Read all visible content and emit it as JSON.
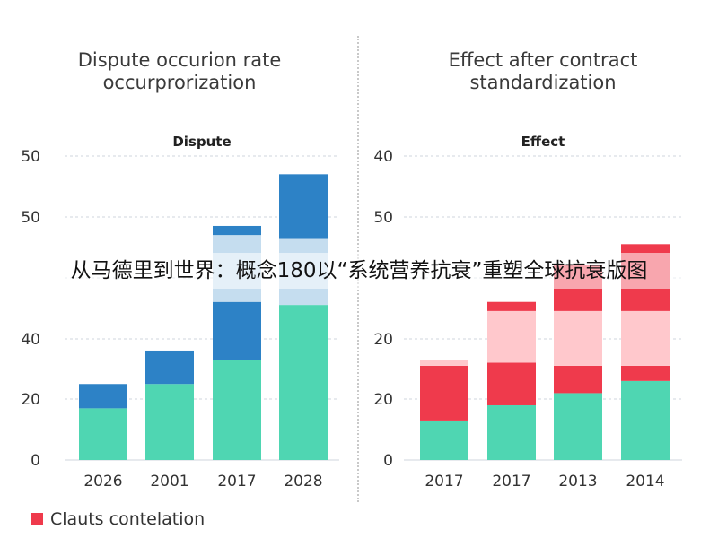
{
  "panels": [
    {
      "title_line1": "Dispute occurion rate",
      "title_line2": "occurprorization"
    },
    {
      "title_line1": "Effect after contract",
      "title_line2": "standardization"
    }
  ],
  "overlay_text": "从马德里到世界：概念180以“系统营养抗衰”重塑全球抗衰版图",
  "legend": {
    "label": "Clauts contelation",
    "color": "#ef3a4c"
  },
  "colors": {
    "green": "#4fd6b2",
    "blue": "#2d82c6",
    "red": "#ef3a4c",
    "pale_blue": "#c5ddef",
    "pale_red": "#ffc8cc",
    "grid": "#cfd6dd"
  },
  "chart_data": [
    {
      "type": "bar",
      "stacked": true,
      "title": "Dispute",
      "yticks": [
        "0",
        "20",
        "40",
        "",
        "50",
        "50"
      ],
      "categories": [
        "2026",
        "2001",
        "2017",
        "2028"
      ],
      "segments": [
        {
          "color": "green",
          "heights": [
            17,
            25,
            33,
            51
          ]
        },
        {
          "color": "blue",
          "heights": [
            8,
            11,
            19,
            0
          ]
        },
        {
          "color": "pale_blue",
          "heights": [
            0,
            0,
            22,
            22
          ]
        },
        {
          "color": "blue",
          "heights": [
            0,
            0,
            3,
            21
          ]
        }
      ],
      "ylim": [
        0,
        100
      ],
      "grid": true
    },
    {
      "type": "bar",
      "stacked": true,
      "title": "Effect",
      "yticks": [
        "0",
        "20",
        "20",
        "",
        "50",
        "40"
      ],
      "categories": [
        "2017",
        "2017",
        "2013",
        "2014"
      ],
      "segments": [
        {
          "color": "green",
          "heights": [
            13,
            18,
            22,
            26
          ]
        },
        {
          "color": "red",
          "heights": [
            18,
            14,
            9,
            5
          ]
        },
        {
          "color": "pale_red",
          "heights": [
            2,
            17,
            18,
            18
          ]
        },
        {
          "color": "red",
          "heights": [
            0,
            3,
            15,
            22
          ]
        }
      ],
      "ylim": [
        0,
        100
      ],
      "grid": true
    }
  ]
}
